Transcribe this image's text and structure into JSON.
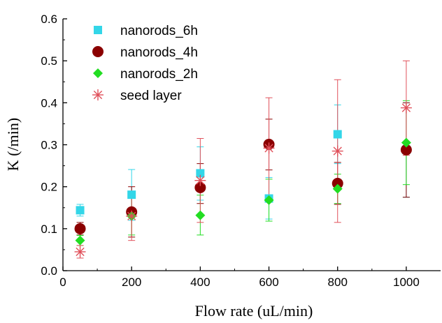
{
  "chart_data": {
    "type": "scatter",
    "xlabel": "Flow rate (uL/min)",
    "ylabel": "K (/min)",
    "xlim": [
      0,
      1100
    ],
    "ylim": [
      0,
      0.6
    ],
    "x_ticks": [
      0,
      200,
      400,
      600,
      800,
      1000
    ],
    "y_ticks": [
      0.0,
      0.1,
      0.2,
      0.3,
      0.4,
      0.5,
      0.6
    ],
    "grid": false,
    "legend_position": "top-left",
    "series": [
      {
        "name": "nanorods_6h",
        "marker": "square",
        "color": "#33d6e8",
        "x": [
          50,
          200,
          400,
          600,
          800,
          1000
        ],
        "y": [
          0.144,
          0.181,
          0.232,
          0.172,
          0.325,
          0.288
        ],
        "err_low": [
          0.13,
          0.12,
          0.168,
          0.123,
          0.255,
          0.175
        ],
        "err_high": [
          0.158,
          0.241,
          0.295,
          0.222,
          0.395,
          0.4
        ]
      },
      {
        "name": "nanorods_4h",
        "marker": "circle",
        "color": "#8b0000",
        "x": [
          50,
          200,
          400,
          600,
          800,
          1000
        ],
        "y": [
          0.1,
          0.14,
          0.198,
          0.301,
          0.208,
          0.288
        ],
        "err_low": [
          0.085,
          0.08,
          0.16,
          0.24,
          0.158,
          0.175
        ],
        "err_high": [
          0.115,
          0.2,
          0.255,
          0.361,
          0.258,
          0.4
        ]
      },
      {
        "name": "nanorods_2h",
        "marker": "diamond",
        "color": "#22dd22",
        "x": [
          50,
          200,
          400,
          600,
          800,
          1000
        ],
        "y": [
          0.072,
          0.13,
          0.132,
          0.168,
          0.195,
          0.305
        ],
        "err_low": [
          0.06,
          0.085,
          0.085,
          0.118,
          0.16,
          0.205
        ],
        "err_high": [
          0.084,
          0.175,
          0.18,
          0.218,
          0.23,
          0.405
        ]
      },
      {
        "name": "seed layer",
        "marker": "asterisk",
        "color": "#e0505a",
        "x": [
          50,
          200,
          400,
          600,
          800,
          1000
        ],
        "y": [
          0.045,
          0.13,
          0.215,
          0.292,
          0.285,
          0.388
        ],
        "err_low": [
          0.03,
          0.072,
          0.115,
          0.172,
          0.115,
          0.275
        ],
        "err_high": [
          0.06,
          0.188,
          0.315,
          0.412,
          0.455,
          0.5
        ]
      }
    ]
  }
}
